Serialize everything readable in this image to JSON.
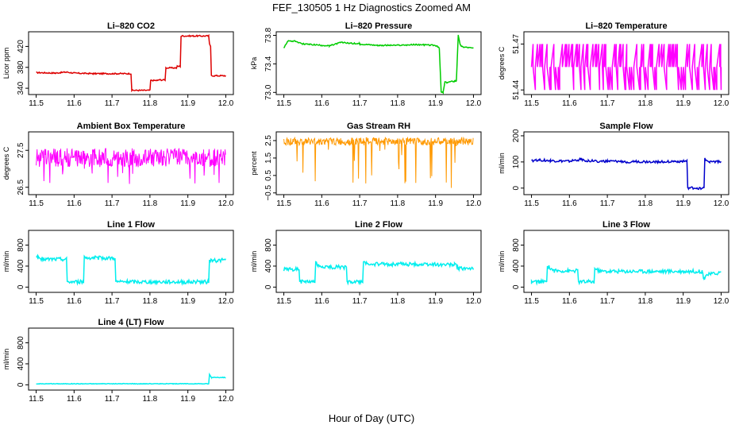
{
  "figure": {
    "title": "FEF_130505  1 Hz Diagnostics Zoomed AM",
    "xlabel": "Hour of Day (UTC)"
  },
  "chart_data": [
    {
      "type": "line",
      "title": "Li–820 CO2",
      "ylabel": "Licor ppm",
      "xlim": [
        11.5,
        12.0
      ],
      "ylim": [
        328,
        448
      ],
      "xticks": [
        "11.5",
        "11.6",
        "11.7",
        "11.8",
        "11.9",
        "12.0"
      ],
      "yticks": [
        340,
        380,
        420
      ],
      "color": "#dd0000",
      "series": [
        {
          "x": [
            11.5,
            11.55,
            11.58,
            11.6,
            11.65,
            11.7,
            11.75,
            11.752,
            11.8,
            11.802,
            11.82,
            11.822,
            11.84,
            11.842,
            11.87,
            11.872,
            11.88,
            11.882,
            11.955,
            11.957,
            11.96,
            11.962,
            12.0
          ],
          "y": [
            370,
            369,
            371,
            369,
            368,
            368,
            368,
            336,
            336,
            355,
            355,
            356,
            356,
            379,
            379,
            382,
            382,
            440,
            440,
            425,
            420,
            364,
            364
          ]
        }
      ]
    },
    {
      "type": "line",
      "title": "Li–820 Pressure",
      "ylabel": "kPa",
      "xlim": [
        11.5,
        12.0
      ],
      "ylim": [
        72.97,
        73.85
      ],
      "xticks": [
        "11.5",
        "11.6",
        "11.7",
        "11.8",
        "11.9",
        "12.0"
      ],
      "yticks": [
        "73.0",
        "73.4",
        "73.8"
      ],
      "color": "#00cc00",
      "series": [
        {
          "x": [
            11.5,
            11.51,
            11.53,
            11.55,
            11.6,
            11.62,
            11.65,
            11.7,
            11.75,
            11.8,
            11.85,
            11.9,
            11.91,
            11.915,
            11.92,
            11.925,
            11.93,
            11.95,
            11.955,
            11.96,
            11.965,
            11.97,
            12.0
          ],
          "y": [
            73.62,
            73.72,
            73.72,
            73.68,
            73.66,
            73.65,
            73.7,
            73.68,
            73.66,
            73.66,
            73.67,
            73.66,
            73.62,
            73.0,
            73.0,
            73.15,
            73.14,
            73.16,
            73.16,
            73.8,
            73.67,
            73.64,
            73.62
          ]
        }
      ]
    },
    {
      "type": "line",
      "title": "Li–820 Temperature",
      "ylabel": "degrees C",
      "xlim": [
        11.5,
        12.0
      ],
      "ylim": [
        51.437,
        51.478
      ],
      "xticks": [
        "11.5",
        "11.6",
        "11.7",
        "11.8",
        "11.9",
        "12.0"
      ],
      "yticks": [
        "51.44",
        "51.47"
      ],
      "color": "#ff00ff",
      "series": [
        {
          "x": [
            11.5,
            12.0
          ],
          "y": [
            51.455,
            51.455
          ]
        }
      ]
    },
    {
      "type": "line",
      "title": "Ambient Box Temperature",
      "ylabel": "degrees C",
      "xlim": [
        11.5,
        12.0
      ],
      "ylim": [
        26.3,
        28.0
      ],
      "xticks": [
        "11.5",
        "11.6",
        "11.7",
        "11.8",
        "11.9",
        "12.0"
      ],
      "yticks": [
        "26.5",
        "27.5"
      ],
      "color": "#ff00ff",
      "series": [
        {
          "x": [
            11.5,
            12.0
          ],
          "y": [
            27.3,
            27.3
          ]
        }
      ]
    },
    {
      "type": "line",
      "title": "Gas Stream RH",
      "ylabel": "percent",
      "xlim": [
        11.5,
        12.0
      ],
      "ylim": [
        -0.6,
        3.0
      ],
      "xticks": [
        "11.5",
        "11.6",
        "11.7",
        "11.8",
        "11.9",
        "12.0"
      ],
      "yticks": [
        "−0.5",
        "0.5",
        "1.5",
        "2.5"
      ],
      "color": "#ff9900",
      "series": [
        {
          "x": [
            11.5,
            12.0
          ],
          "y": [
            2.45,
            2.45
          ]
        }
      ]
    },
    {
      "type": "line",
      "title": "Sample Flow",
      "ylabel": "ml/min",
      "xlim": [
        11.5,
        12.0
      ],
      "ylim": [
        -25,
        215
      ],
      "xticks": [
        "11.5",
        "11.6",
        "11.7",
        "11.8",
        "11.9",
        "12.0"
      ],
      "yticks": [
        0,
        100,
        200
      ],
      "color": "#0000cc",
      "series": [
        {
          "x": [
            11.5,
            11.52,
            11.55,
            11.6,
            11.63,
            11.65,
            11.7,
            11.75,
            11.8,
            11.85,
            11.9,
            11.91,
            11.912,
            11.955,
            11.957,
            11.96,
            11.97,
            12.0
          ],
          "y": [
            105,
            108,
            104,
            102,
            110,
            104,
            102,
            101,
            101,
            101,
            102,
            102,
            0,
            0,
            115,
            104,
            102,
            101
          ]
        }
      ]
    },
    {
      "type": "line",
      "title": "Line 1 Flow",
      "ylabel": "ml/min",
      "xlim": [
        11.5,
        12.0
      ],
      "ylim": [
        -100,
        1080
      ],
      "xticks": [
        "11.5",
        "11.6",
        "11.7",
        "11.8",
        "11.9",
        "12.0"
      ],
      "yticks": [
        0,
        400,
        800
      ],
      "color": "#00eeee",
      "series": [
        {
          "x": [
            11.5,
            11.505,
            11.52,
            11.58,
            11.582,
            11.625,
            11.627,
            11.63,
            11.708,
            11.71,
            11.955,
            11.957,
            11.965,
            12.0
          ],
          "y": [
            600,
            560,
            530,
            530,
            100,
            100,
            590,
            560,
            550,
            100,
            100,
            520,
            500,
            520
          ]
        }
      ]
    },
    {
      "type": "line",
      "title": "Line 2 Flow",
      "ylabel": "ml/min",
      "xlim": [
        11.5,
        12.0
      ],
      "ylim": [
        -100,
        1080
      ],
      "xticks": [
        "11.5",
        "11.6",
        "11.7",
        "11.8",
        "11.9",
        "12.0"
      ],
      "yticks": [
        0,
        400,
        800
      ],
      "color": "#00eeee",
      "series": [
        {
          "x": [
            11.5,
            11.54,
            11.542,
            11.582,
            11.584,
            11.59,
            11.62,
            11.665,
            11.667,
            11.708,
            11.71,
            11.72,
            11.95,
            11.955,
            11.96,
            12.0
          ],
          "y": [
            340,
            340,
            100,
            100,
            470,
            400,
            380,
            380,
            100,
            100,
            490,
            440,
            430,
            430,
            350,
            350
          ]
        }
      ]
    },
    {
      "type": "line",
      "title": "Line 3 Flow",
      "ylabel": "ml/min",
      "xlim": [
        11.5,
        12.0
      ],
      "ylim": [
        -100,
        1080
      ],
      "xticks": [
        "11.5",
        "11.6",
        "11.7",
        "11.8",
        "11.9",
        "12.0"
      ],
      "yticks": [
        0,
        400,
        800
      ],
      "color": "#00eeee",
      "series": [
        {
          "x": [
            11.5,
            11.5,
            11.54,
            11.542,
            11.56,
            11.6,
            11.622,
            11.624,
            11.665,
            11.667,
            11.68,
            11.75,
            11.9,
            11.95,
            11.955,
            11.96,
            12.0
          ],
          "y": [
            60,
            100,
            100,
            400,
            310,
            310,
            310,
            100,
            100,
            350,
            300,
            300,
            300,
            300,
            160,
            230,
            280
          ]
        }
      ]
    },
    {
      "type": "line",
      "title": "Line 4 (LT) Flow",
      "ylabel": "ml/min",
      "xlim": [
        11.5,
        12.0
      ],
      "ylim": [
        -100,
        1080
      ],
      "xticks": [
        "11.5",
        "11.6",
        "11.7",
        "11.8",
        "11.9",
        "12.0"
      ],
      "yticks": [
        0,
        400,
        800
      ],
      "color": "#00eeee",
      "series": [
        {
          "x": [
            11.5,
            11.955,
            11.957,
            11.962,
            12.0
          ],
          "y": [
            20,
            20,
            200,
            140,
            140
          ]
        }
      ]
    }
  ]
}
